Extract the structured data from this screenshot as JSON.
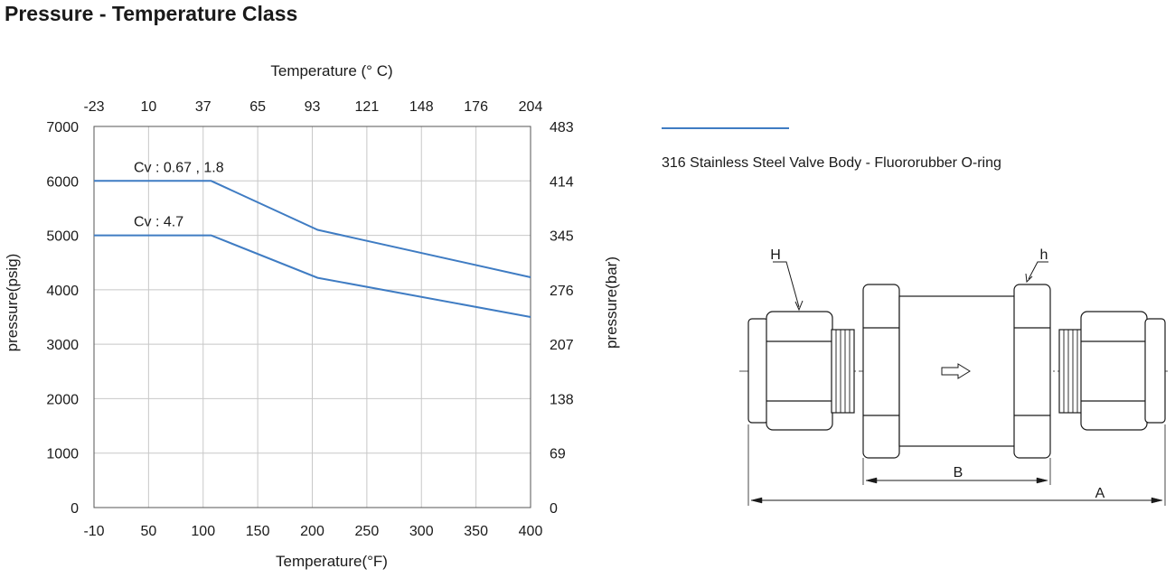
{
  "title": "Pressure - Temperature Class",
  "colors": {
    "series": "#3f7cc3",
    "grid": "#c8c8c8",
    "axis": "#555555",
    "ink": "#1a1a1a"
  },
  "chart_data": {
    "type": "line",
    "title": "",
    "xlabel": "Temperature(°F)",
    "x2label": "Temperature (° C)",
    "ylabel": "pressure(psig)",
    "y2label": "pressure(bar)",
    "xlim": [
      -10,
      400
    ],
    "ylim": [
      0,
      7000
    ],
    "xticks": [
      "-10",
      "50",
      "100",
      "150",
      "200",
      "250",
      "300",
      "350",
      "400"
    ],
    "x2ticks": [
      "-23",
      "10",
      "37",
      "65",
      "93",
      "121",
      "148",
      "176",
      "204"
    ],
    "yticks": [
      "0",
      "1000",
      "2000",
      "3000",
      "4000",
      "5000",
      "6000",
      "7000"
    ],
    "y2ticks": [
      "0",
      "69",
      "138",
      "207",
      "276",
      "345",
      "414",
      "483"
    ],
    "grid": true,
    "series": [
      {
        "name": "Cv : 0.67 , 1.8",
        "x": [
          -10,
          100,
          200,
          400
        ],
        "y": [
          6000,
          6000,
          5100,
          4230
        ]
      },
      {
        "name": "Cv : 4.7",
        "x": [
          -10,
          100,
          200,
          400
        ],
        "y": [
          5000,
          5000,
          4220,
          3500
        ]
      }
    ]
  },
  "legend": {
    "label": "316 Stainless Steel Valve Body - Fluororubber O-ring"
  },
  "diagram": {
    "labels": {
      "H": "H",
      "h": "h",
      "A": "A",
      "B": "B"
    }
  }
}
